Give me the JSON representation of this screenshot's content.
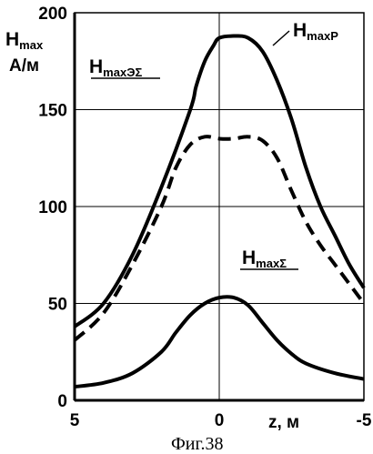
{
  "figure_caption": "Фиг.38",
  "chart_data": {
    "type": "line",
    "title": "",
    "ylabel": {
      "main": "H",
      "sub": "max",
      "unit": "А/м"
    },
    "xlabel": "z, м",
    "xlim": [
      5,
      -5
    ],
    "ylim": [
      0,
      200
    ],
    "xticks": [
      5,
      0,
      -5
    ],
    "yticks": [
      0,
      50,
      100,
      150,
      200
    ],
    "grid": true,
    "series": [
      {
        "name": "HmaxP",
        "label_main": "H",
        "label_sub": "maxP",
        "style": "solid",
        "points": [
          [
            5,
            38
          ],
          [
            4,
            50
          ],
          [
            3,
            75
          ],
          [
            2,
            110
          ],
          [
            1,
            150
          ],
          [
            0.8,
            162
          ],
          [
            0.5,
            175
          ],
          [
            0.2,
            183
          ],
          [
            0,
            187
          ],
          [
            -0.5,
            188
          ],
          [
            -1.0,
            187
          ],
          [
            -1.5,
            180
          ],
          [
            -2.0,
            165
          ],
          [
            -2.5,
            145
          ],
          [
            -3.0,
            120
          ],
          [
            -3.5,
            100
          ],
          [
            -4.0,
            85
          ],
          [
            -4.5,
            70
          ],
          [
            -5,
            58
          ]
        ]
      },
      {
        "name": "HmaxЭΣ",
        "label_main": "H",
        "label_sub": "maxЭΣ",
        "style": "dashed",
        "points": [
          [
            5,
            31
          ],
          [
            4,
            45
          ],
          [
            3,
            70
          ],
          [
            2,
            100
          ],
          [
            1.5,
            120
          ],
          [
            1,
            132
          ],
          [
            0.5,
            136
          ],
          [
            0,
            135
          ],
          [
            -0.5,
            135
          ],
          [
            -1,
            136
          ],
          [
            -1.5,
            134
          ],
          [
            -2,
            125
          ],
          [
            -2.5,
            108
          ],
          [
            -3,
            92
          ],
          [
            -3.5,
            80
          ],
          [
            -4,
            70
          ],
          [
            -4.5,
            60
          ],
          [
            -5,
            50
          ]
        ]
      },
      {
        "name": "HmaxΣ",
        "label_main": "H",
        "label_sub": "maxΣ",
        "style": "solid",
        "points": [
          [
            5,
            7
          ],
          [
            4,
            9
          ],
          [
            3,
            14
          ],
          [
            2,
            25
          ],
          [
            1.5,
            35
          ],
          [
            1,
            44
          ],
          [
            0.5,
            50
          ],
          [
            0,
            53
          ],
          [
            -0.5,
            53
          ],
          [
            -1,
            49
          ],
          [
            -1.5,
            40
          ],
          [
            -2,
            31
          ],
          [
            -2.5,
            24
          ],
          [
            -3,
            19
          ],
          [
            -4,
            14
          ],
          [
            -5,
            11
          ]
        ]
      }
    ]
  }
}
